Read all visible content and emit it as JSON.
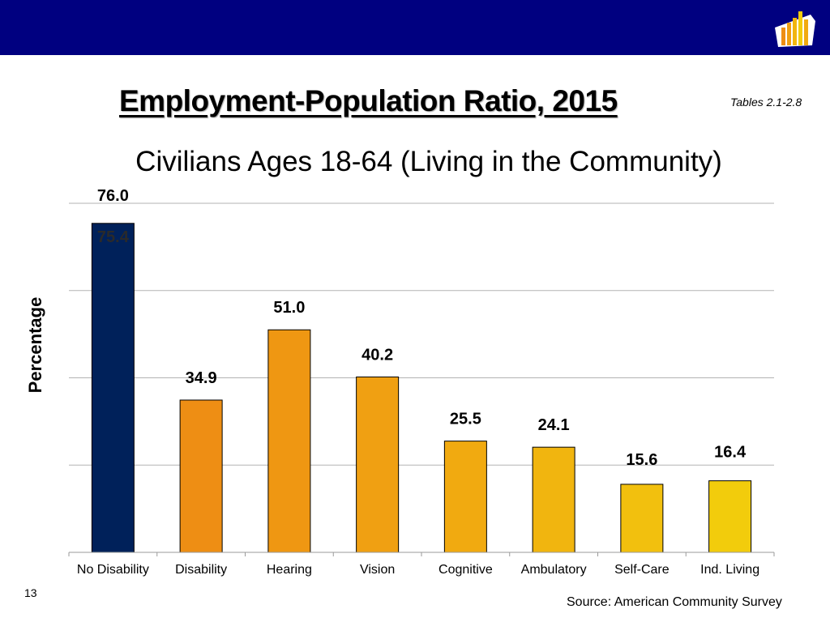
{
  "header": {
    "logo_icon": "bar-chart-map-icon",
    "banner_color": "#000080"
  },
  "title": "Employment-Population Ratio, 2015",
  "table_ref": "Tables 2.1-2.8",
  "footer": {
    "slide_number": "13",
    "source": "Source: American Community Survey"
  },
  "chart_data": {
    "type": "bar",
    "title": "",
    "subtitle": "Civilians Ages 18-64 (Living in the Community)",
    "xlabel": "",
    "ylabel": "Percentage",
    "ylim": [
      0,
      80
    ],
    "grid": true,
    "legend": "none",
    "categories": [
      "No Disability",
      "Disability",
      "Hearing",
      "Vision",
      "Cognitive",
      "Ambulatory",
      "Self-Care",
      "Ind. Living"
    ],
    "values": [
      75.4,
      34.9,
      51.0,
      40.2,
      25.5,
      24.1,
      15.6,
      16.4
    ],
    "data_labels": [
      "75.4",
      "34.9",
      "51.0",
      "40.2",
      "25.5",
      "24.1",
      "15.6",
      "16.4"
    ],
    "extra_annotation": "76.0",
    "colors": [
      "#00215a",
      "#ee8e14",
      "#ef9712",
      "#f0a012",
      "#f1aa10",
      "#f1b50f",
      "#f2c00e",
      "#f2cc0c"
    ]
  }
}
